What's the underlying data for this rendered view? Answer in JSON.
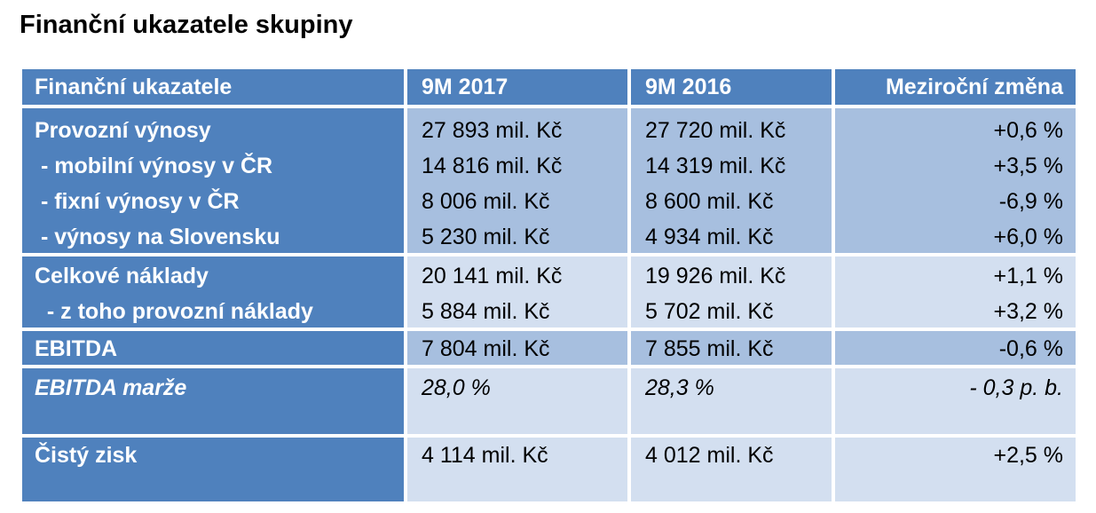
{
  "title": "Finanční ukazatele skupiny",
  "table": {
    "header": [
      "Finanční ukazatele",
      "9M 2017",
      "9M 2016",
      "Meziroční změna"
    ],
    "groups": [
      [
        [
          "Provozní výnosy",
          "27 893 mil. Kč",
          "27 720 mil. Kč",
          "+0,6 %"
        ],
        [
          " - mobilní výnosy v ČR",
          "14 816 mil. Kč",
          "14 319 mil. Kč",
          "+3,5 %"
        ],
        [
          " - fixní výnosy v ČR",
          "8 006 mil. Kč",
          "8 600 mil. Kč",
          "-6,9 %"
        ],
        [
          " - výnosy na Slovensku",
          "5 230 mil. Kč",
          "4 934 mil. Kč",
          "+6,0 %"
        ]
      ],
      [
        [
          "Celkové náklady",
          "20 141 mil. Kč",
          "19 926 mil. Kč",
          "+1,1 %"
        ],
        [
          "  - z toho provozní náklady",
          "5 884 mil. Kč",
          "5 702 mil. Kč",
          "+3,2 %"
        ]
      ],
      [
        [
          "EBITDA",
          "7 804 mil. Kč",
          "7 855 mil. Kč",
          "-0,6 %"
        ]
      ],
      [
        [
          "EBITDA marže",
          "28,0 %",
          "28,3 %",
          "- 0,3 p. b."
        ]
      ],
      [
        [
          "Čistý zisk",
          "4 114 mil. Kč",
          "4 012 mil. Kč",
          "+2,5 %"
        ]
      ]
    ]
  }
}
